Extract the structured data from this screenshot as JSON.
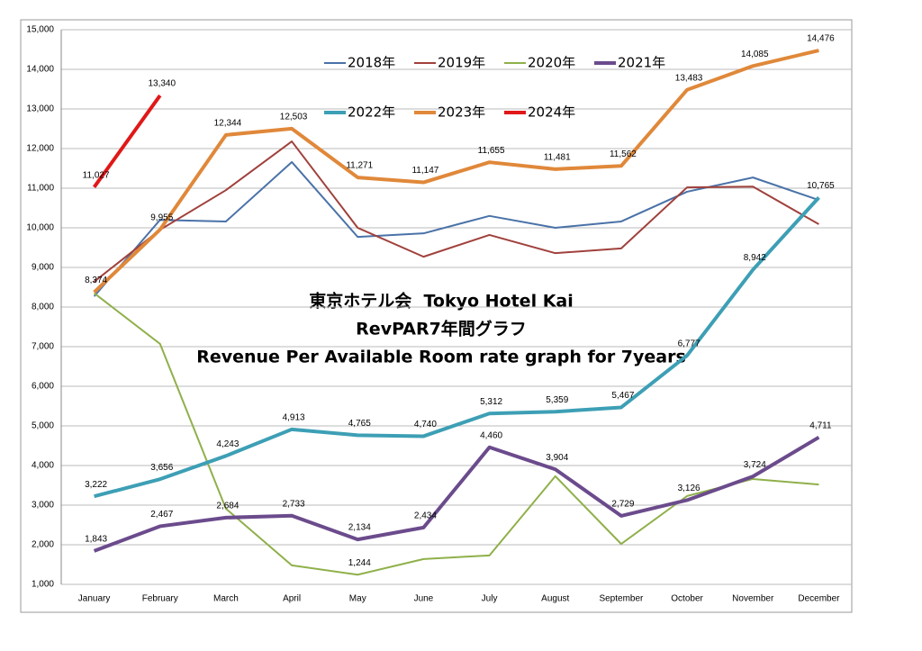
{
  "chart_data": {
    "type": "line",
    "title": [
      "東京ホテル会  Tokyo Hotel Kai",
      "RevPAR7年間グラフ",
      "Revenue Per Available Room rate graph for 7years"
    ],
    "categories": [
      "January",
      "February",
      "March",
      "April",
      "May",
      "June",
      "July",
      "August",
      "September",
      "October",
      "November",
      "December"
    ],
    "ylim": [
      1000,
      15000
    ],
    "yticks": [
      {
        "value": 1000,
        "label": "1,000"
      },
      {
        "value": 2000,
        "label": "2,000"
      },
      {
        "value": 3000,
        "label": "3,000"
      },
      {
        "value": 4000,
        "label": "4,000"
      },
      {
        "value": 5000,
        "label": "5,000"
      },
      {
        "value": 6000,
        "label": "6,000"
      },
      {
        "value": 7000,
        "label": "7,000"
      },
      {
        "value": 8000,
        "label": "8,000"
      },
      {
        "value": 9000,
        "label": "9,000"
      },
      {
        "value": 10000,
        "label": "10,000"
      },
      {
        "value": 11000,
        "label": "11,000"
      },
      {
        "value": 12000,
        "label": "12,000"
      },
      {
        "value": 13000,
        "label": "13,000"
      },
      {
        "value": 14000,
        "label": "14,000"
      },
      {
        "value": 15000,
        "label": "15,000"
      }
    ],
    "grid": true,
    "series": [
      {
        "name": "2018年",
        "color": "#4a72a8",
        "line_width": 2,
        "values": [
          8270,
          10200,
          10160,
          11660,
          9770,
          9860,
          10300,
          10000,
          10160,
          10910,
          11270,
          10700
        ]
      },
      {
        "name": "2019年",
        "color": "#a0413c",
        "line_width": 2,
        "values": [
          8640,
          9950,
          10950,
          12180,
          10000,
          9270,
          9820,
          9360,
          9480,
          11020,
          11040,
          10090
        ]
      },
      {
        "name": "2020年",
        "color": "#8fb04a",
        "line_width": 2,
        "values": [
          8350,
          7070,
          2910,
          1480,
          1244,
          1640,
          1730,
          3730,
          2020,
          3230,
          3660,
          3520
        ],
        "value_labels": [
          null,
          null,
          null,
          null,
          "1,244",
          null,
          null,
          null,
          null,
          null,
          null,
          null
        ]
      },
      {
        "name": "2021年",
        "color": "#6b4b8c",
        "line_width": 4,
        "values": [
          1843,
          2467,
          2684,
          2733,
          2134,
          2434,
          4460,
          3904,
          2729,
          3126,
          3724,
          4711
        ],
        "value_labels": [
          "1,843",
          "2,467",
          "2,684",
          "2,733",
          "2,134",
          "2,434",
          "4,460",
          "3,904",
          "2,729",
          "3,126",
          "3,724",
          "4,711"
        ]
      },
      {
        "name": "2022年",
        "color": "#3d9fb5",
        "line_width": 4,
        "values": [
          3222,
          3656,
          4243,
          4913,
          4765,
          4740,
          5312,
          5359,
          5467,
          6777,
          8942,
          10765
        ],
        "value_labels": [
          "3,222",
          "3,656",
          "4,243",
          "4,913",
          "4,765",
          "4,740",
          "5,312",
          "5,359",
          "5,467",
          "6,777",
          "8,942",
          "10,765"
        ]
      },
      {
        "name": "2023年",
        "color": "#e0883a",
        "line_width": 4,
        "values": [
          8374,
          9955,
          12344,
          12503,
          11271,
          11147,
          11655,
          11481,
          11562,
          13483,
          14085,
          14476
        ],
        "value_labels": [
          "8,374",
          "9,955",
          "12,344",
          "12,503",
          "11,271",
          "11,147",
          "11,655",
          "11,481",
          "11,562",
          "13,483",
          "14,085",
          "14,476"
        ]
      },
      {
        "name": "2024年",
        "color": "#e01818",
        "line_width": 4,
        "values": [
          11027,
          13340,
          null,
          null,
          null,
          null,
          null,
          null,
          null,
          null,
          null,
          null
        ],
        "value_labels": [
          "11,027",
          "13,340",
          null,
          null,
          null,
          null,
          null,
          null,
          null,
          null,
          null,
          null
        ]
      }
    ]
  }
}
